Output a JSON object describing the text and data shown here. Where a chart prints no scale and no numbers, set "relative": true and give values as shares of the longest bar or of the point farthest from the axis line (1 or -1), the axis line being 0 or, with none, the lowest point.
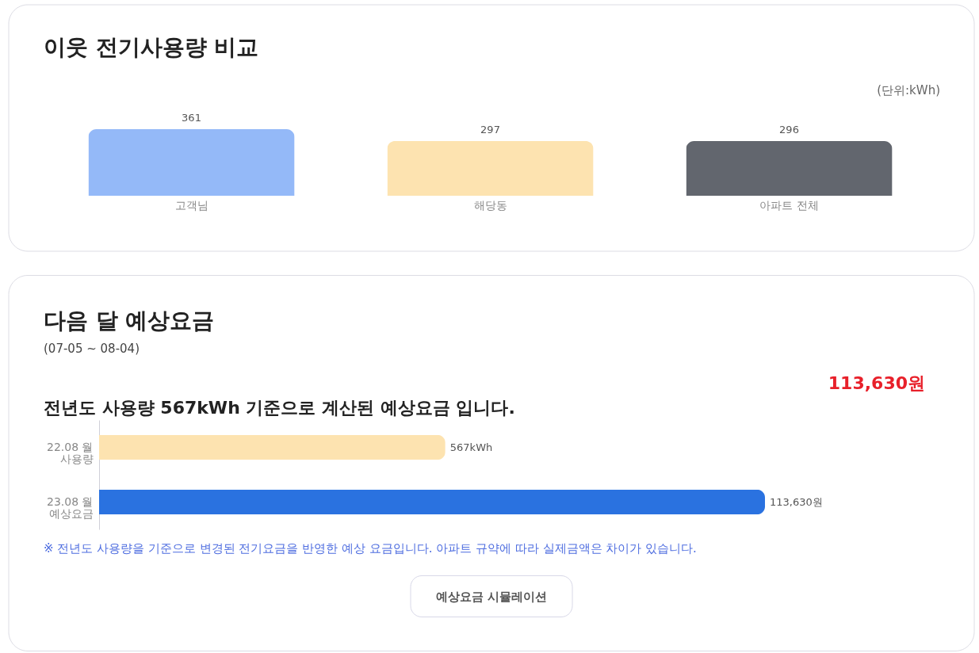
{
  "chart_data": [
    {
      "type": "bar",
      "title": "이웃 전기사용량 비교",
      "annotations": [
        "(단위:kWh)"
      ],
      "categories": [
        "고객님",
        "해당동",
        "아파트 전체"
      ],
      "values": [
        361,
        297,
        296
      ],
      "colors": [
        "#94b9f8",
        "#fde3b0",
        "#62666e"
      ],
      "data_labels": true
    },
    {
      "type": "bar",
      "orientation": "horizontal",
      "relative": true,
      "title": "다음 달 예상요금",
      "subtitle": "(07-05 ~ 08-04)",
      "annotations": [
        "113,630원",
        "전년도 사용량 567kWh 기준으로 계산된 예상요금 입니다.",
        {
          "text": "567kWh",
          "x": 0.52,
          "y": "22.08 월\n사용량"
        },
        {
          "text": "113,630원",
          "x": 1,
          "y": "23.08 월\n예상요금"
        },
        "※ 전년도 사용량을 기준으로 변경된 전기요금을 반영한 예상 요금입니다. 아파트 규약에 따라 실제금액은 차이가 있습니다.",
        "예상요금 시뮬레이션"
      ],
      "categories": [
        "22.08 월\n사용량",
        "23.08 월\n예상요금"
      ],
      "values": [
        0.52,
        1
      ],
      "colors": [
        "#fde3b0",
        "#2a72e0"
      ]
    }
  ]
}
